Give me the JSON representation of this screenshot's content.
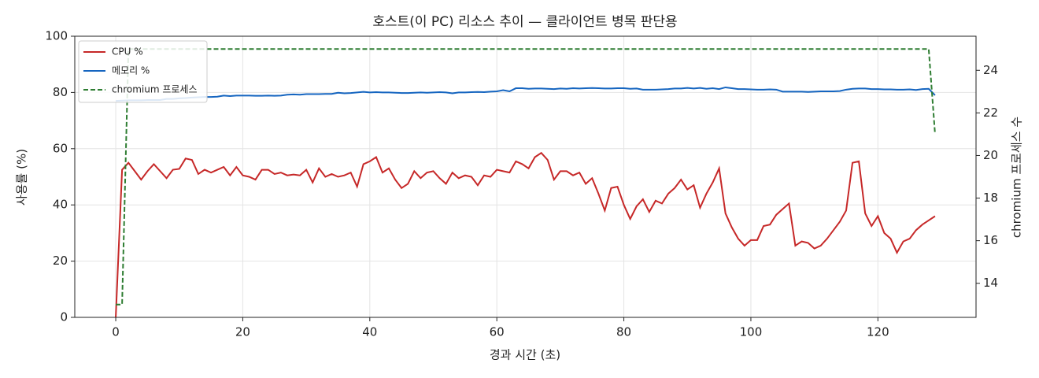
{
  "chart_data": {
    "type": "line",
    "title": "호스트(이 PC) 리소스 추이 — 클라이언트 병목 판단용",
    "xlabel": "경과 시간 (초)",
    "ylabel": "사용률 (%)",
    "y2label": "chromium 프로세스 수",
    "x": [
      0,
      1,
      2,
      3,
      4,
      5,
      6,
      7,
      8,
      9,
      10,
      11,
      12,
      13,
      14,
      15,
      16,
      17,
      18,
      19,
      20,
      21,
      22,
      23,
      24,
      25,
      26,
      27,
      28,
      29,
      30,
      31,
      32,
      33,
      34,
      35,
      36,
      37,
      38,
      39,
      40,
      41,
      42,
      43,
      44,
      45,
      46,
      47,
      48,
      49,
      50,
      51,
      52,
      53,
      54,
      55,
      56,
      57,
      58,
      59,
      60,
      61,
      62,
      63,
      64,
      65,
      66,
      67,
      68,
      69,
      70,
      71,
      72,
      73,
      74,
      75,
      76,
      77,
      78,
      79,
      80,
      81,
      82,
      83,
      84,
      85,
      86,
      87,
      88,
      89,
      90,
      91,
      92,
      93,
      94,
      95,
      96,
      97,
      98,
      99,
      100,
      101,
      102,
      103,
      104,
      105,
      106,
      107,
      108,
      109,
      110,
      111,
      112,
      113,
      114,
      115,
      116,
      117,
      118,
      119,
      120,
      121,
      122,
      123,
      124,
      125,
      126,
      127,
      128,
      129
    ],
    "series": [
      {
        "name": "CPU %",
        "color": "#c62828",
        "dash": false,
        "values": [
          0,
          52.5,
          55,
          52,
          49,
          52,
          54.5,
          52,
          49.5,
          52.5,
          52.8,
          56.5,
          56,
          51,
          52.5,
          51.5,
          52.5,
          53.5,
          50.5,
          53.5,
          50.5,
          50,
          49,
          52.5,
          52.5,
          51,
          51.5,
          50.5,
          50.8,
          50.5,
          52.5,
          48,
          53,
          50,
          51,
          50,
          50.5,
          51.5,
          46.5,
          54.5,
          55.5,
          57,
          51.5,
          53,
          49,
          46,
          47.5,
          52,
          49.5,
          51.5,
          52,
          49.5,
          47.5,
          51.5,
          49.5,
          50.5,
          50,
          47,
          50.5,
          50,
          52.5,
          52,
          51.5,
          55.5,
          54.5,
          53,
          57,
          58.5,
          56,
          49,
          52,
          52,
          50.5,
          51.5,
          47.5,
          49.5,
          44,
          38,
          46,
          46.5,
          40,
          35,
          39.5,
          42,
          37.5,
          41.5,
          40.5,
          44,
          46,
          49,
          45.5,
          47,
          39,
          44,
          48,
          53,
          37,
          32,
          28,
          25.5,
          27.5,
          27.5,
          32.5,
          33,
          36.5,
          38.5,
          40.5,
          25.5,
          27,
          26.5,
          24.5,
          25.5,
          28,
          31,
          34,
          38,
          55,
          55.5,
          37,
          32.5,
          36,
          30,
          28,
          23,
          27,
          28,
          31,
          33,
          34.5,
          36
        ]
      },
      {
        "name": "메모리 %",
        "color": "#1565c0",
        "dash": false,
        "values": [
          77,
          77.1,
          77.2,
          77.2,
          77.2,
          77.3,
          77.3,
          77.3,
          77.7,
          77.7,
          77.9,
          78,
          78.2,
          78.3,
          78.4,
          78.4,
          78.5,
          78.9,
          78.7,
          78.9,
          78.9,
          78.9,
          78.8,
          78.8,
          78.9,
          78.8,
          78.9,
          79.2,
          79.3,
          79.2,
          79.4,
          79.4,
          79.4,
          79.5,
          79.5,
          79.9,
          79.7,
          79.8,
          80,
          80.2,
          80,
          80.1,
          80,
          80,
          79.9,
          79.8,
          79.8,
          79.9,
          80,
          79.9,
          80,
          80.1,
          80,
          79.7,
          80,
          80,
          80.1,
          80.2,
          80.1,
          80.3,
          80.4,
          80.8,
          80.4,
          81.5,
          81.5,
          81.3,
          81.4,
          81.4,
          81.3,
          81.2,
          81.4,
          81.3,
          81.5,
          81.4,
          81.5,
          81.6,
          81.5,
          81.4,
          81.4,
          81.5,
          81.5,
          81.3,
          81.4,
          81,
          81,
          81,
          81.1,
          81.2,
          81.4,
          81.4,
          81.6,
          81.4,
          81.6,
          81.3,
          81.5,
          81.2,
          81.8,
          81.5,
          81.2,
          81.2,
          81.1,
          81,
          81,
          81.1,
          81,
          80.3,
          80.3,
          80.3,
          80.3,
          80.2,
          80.3,
          80.4,
          80.4,
          80.4,
          80.5,
          81,
          81.3,
          81.4,
          81.4,
          81.2,
          81.2,
          81.1,
          81.1,
          81,
          81,
          81.1,
          80.9,
          81.2,
          81.3,
          79
        ]
      },
      {
        "name": "chromium 프로세스",
        "color": "#2e7d32",
        "dash": true,
        "axis": "y2",
        "values": [
          13,
          13,
          25,
          25,
          25,
          25,
          25,
          25,
          25,
          25,
          25,
          25,
          25,
          25,
          25,
          25,
          25,
          25,
          25,
          25,
          25,
          25,
          25,
          25,
          25,
          25,
          25,
          25,
          25,
          25,
          25,
          25,
          25,
          25,
          25,
          25,
          25,
          25,
          25,
          25,
          25,
          25,
          25,
          25,
          25,
          25,
          25,
          25,
          25,
          25,
          25,
          25,
          25,
          25,
          25,
          25,
          25,
          25,
          25,
          25,
          25,
          25,
          25,
          25,
          25,
          25,
          25,
          25,
          25,
          25,
          25,
          25,
          25,
          25,
          25,
          25,
          25,
          25,
          25,
          25,
          25,
          25,
          25,
          25,
          25,
          25,
          25,
          25,
          25,
          25,
          25,
          25,
          25,
          25,
          25,
          25,
          25,
          25,
          25,
          25,
          25,
          25,
          25,
          25,
          25,
          25,
          25,
          25,
          25,
          25,
          25,
          25,
          25,
          25,
          25,
          25,
          25,
          25,
          25,
          25,
          25,
          25,
          25,
          25,
          25,
          25,
          25,
          25,
          25,
          21
        ]
      }
    ],
    "xlim": [
      -6.45,
      135.45
    ],
    "xticks": [
      0,
      20,
      40,
      60,
      80,
      100,
      120
    ],
    "ylim": [
      0,
      100
    ],
    "yticks": [
      0,
      20,
      40,
      60,
      80,
      100
    ],
    "y2lim": [
      12.4,
      25.6
    ],
    "y2ticks": [
      14,
      16,
      18,
      20,
      22,
      24
    ],
    "grid": true,
    "legend": "upper-left"
  }
}
